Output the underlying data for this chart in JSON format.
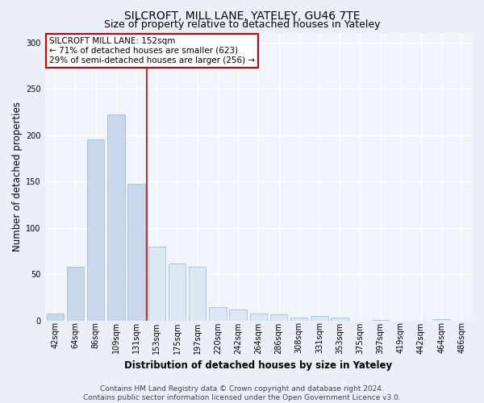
{
  "title": "SILCROFT, MILL LANE, YATELEY, GU46 7TE",
  "subtitle": "Size of property relative to detached houses in Yateley",
  "xlabel": "Distribution of detached houses by size in Yateley",
  "ylabel": "Number of detached properties",
  "footnote": "Contains HM Land Registry data © Crown copyright and database right 2024.\nContains public sector information licensed under the Open Government Licence v3.0.",
  "annotation_line1": "SILCROFT MILL LANE: 152sqm",
  "annotation_line2": "← 71% of detached houses are smaller (623)",
  "annotation_line3": "29% of semi-detached houses are larger (256) →",
  "bar_labels": [
    "42sqm",
    "64sqm",
    "86sqm",
    "109sqm",
    "131sqm",
    "153sqm",
    "175sqm",
    "197sqm",
    "220sqm",
    "242sqm",
    "264sqm",
    "286sqm",
    "308sqm",
    "331sqm",
    "353sqm",
    "375sqm",
    "397sqm",
    "419sqm",
    "442sqm",
    "464sqm",
    "486sqm"
  ],
  "bar_values": [
    8,
    58,
    195,
    222,
    148,
    80,
    62,
    58,
    15,
    12,
    8,
    7,
    3,
    5,
    3,
    0,
    1,
    0,
    0,
    2,
    0
  ],
  "bar_color_left": "#c8d8ec",
  "bar_color_right": "#dce9f5",
  "property_line_x": 5,
  "ylim": [
    0,
    310
  ],
  "yticks": [
    0,
    50,
    100,
    150,
    200,
    250,
    300
  ],
  "bg_color": "#eaeff8",
  "plot_bg_color": "#f0f4fb",
  "grid_color": "#ffffff",
  "annotation_box_color": "#ffffff",
  "annotation_box_edge": "#cc0000",
  "vline_color": "#cc0000",
  "title_fontsize": 10,
  "subtitle_fontsize": 9,
  "axis_label_fontsize": 8.5,
  "tick_fontsize": 7,
  "annotation_fontsize": 7.5,
  "footnote_fontsize": 6.5
}
